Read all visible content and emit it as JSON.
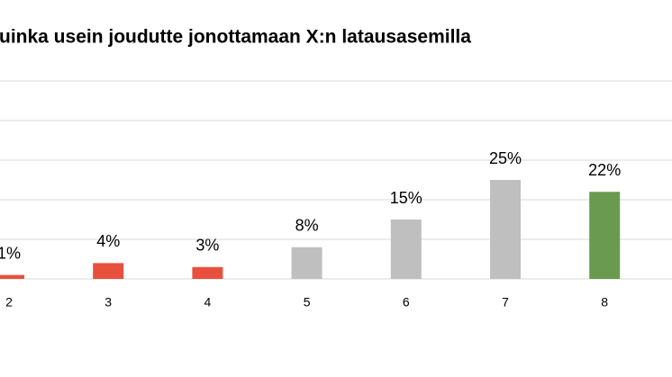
{
  "chart_data": {
    "type": "bar",
    "title": "uinka usein joudutte jonottamaan X:n latausasemilla",
    "categories": [
      "2",
      "3",
      "4",
      "5",
      "6",
      "7",
      "8"
    ],
    "values": [
      1,
      4,
      3,
      8,
      15,
      25,
      22
    ],
    "value_labels": [
      "1%",
      "4%",
      "3%",
      "8%",
      "15%",
      "25%",
      "22%"
    ],
    "colors": [
      "#e8503e",
      "#e8503e",
      "#e8503e",
      "#bfbfbf",
      "#bfbfbf",
      "#bfbfbf",
      "#6a9a50"
    ],
    "ylim": [
      0,
      50
    ],
    "yticks": [
      0,
      10,
      20,
      30,
      40,
      50
    ],
    "grid": true
  }
}
